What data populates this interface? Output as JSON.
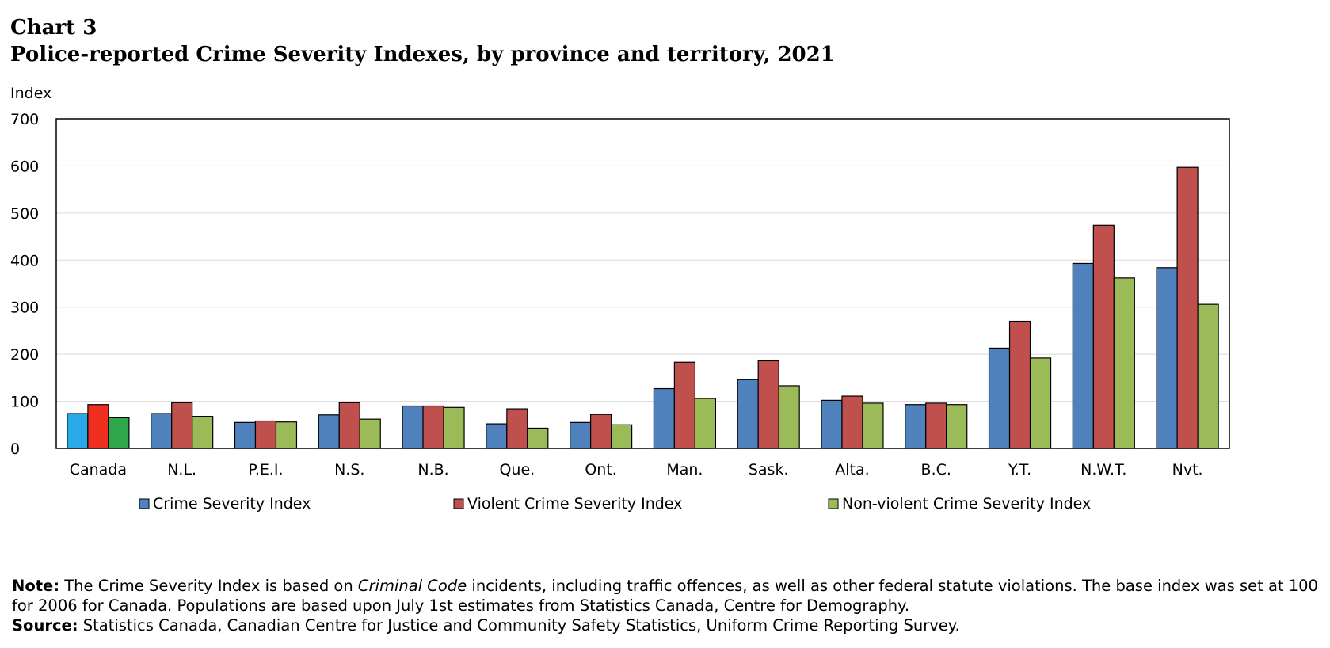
{
  "header": {
    "chart_number": "Chart 3",
    "title": "Police-reported Crime Severity Indexes, by province and territory, 2021"
  },
  "axis": {
    "y_unit": "Index"
  },
  "notes": {
    "note_label": "Note:",
    "note_pre": "The Crime Severity Index is based on ",
    "note_italic": "Criminal Code",
    "note_post": " incidents, including traffic offences, as well as other federal statute violations.  The base index was set at 100 for 2006 for Canada. Populations are based upon July 1st estimates from Statistics Canada, Centre for Demography.",
    "source_label": "Source:",
    "source_text": "Statistics Canada, Canadian Centre for Justice and Community Safety Statistics, Uniform Crime Reporting Survey."
  },
  "chart_data": {
    "type": "bar",
    "title": "Police-reported Crime Severity Indexes, by province and territory, 2021",
    "ylabel": "Index",
    "ylim": [
      0,
      700
    ],
    "yticks": [
      0,
      100,
      200,
      300,
      400,
      500,
      600,
      700
    ],
    "grid": true,
    "legend_position": "bottom",
    "categories": [
      "Canada",
      "N.L.",
      "P.E.I.",
      "N.S.",
      "N.B.",
      "Que.",
      "Ont.",
      "Man.",
      "Sask.",
      "Alta.",
      "B.C.",
      "Y.T.",
      "N.W.T.",
      "Nvt."
    ],
    "series": [
      {
        "name": "Crime Severity Index",
        "color": "#4f81bd",
        "values": [
          74,
          74,
          55,
          71,
          90,
          52,
          55,
          127,
          146,
          102,
          93,
          213,
          393,
          384
        ]
      },
      {
        "name": "Violent Crime Severity Index",
        "color": "#c0504d",
        "values": [
          93,
          97,
          58,
          97,
          90,
          84,
          72,
          183,
          186,
          111,
          96,
          270,
          474,
          597
        ]
      },
      {
        "name": "Non-violent Crime Severity Index",
        "color": "#9bbb59",
        "values": [
          65,
          68,
          56,
          62,
          87,
          43,
          50,
          106,
          133,
          96,
          93,
          192,
          362,
          306
        ]
      }
    ],
    "highlight_colors": {
      "Canada": [
        "#2aa9e8",
        "#f02e1f",
        "#2ea84b"
      ]
    }
  }
}
